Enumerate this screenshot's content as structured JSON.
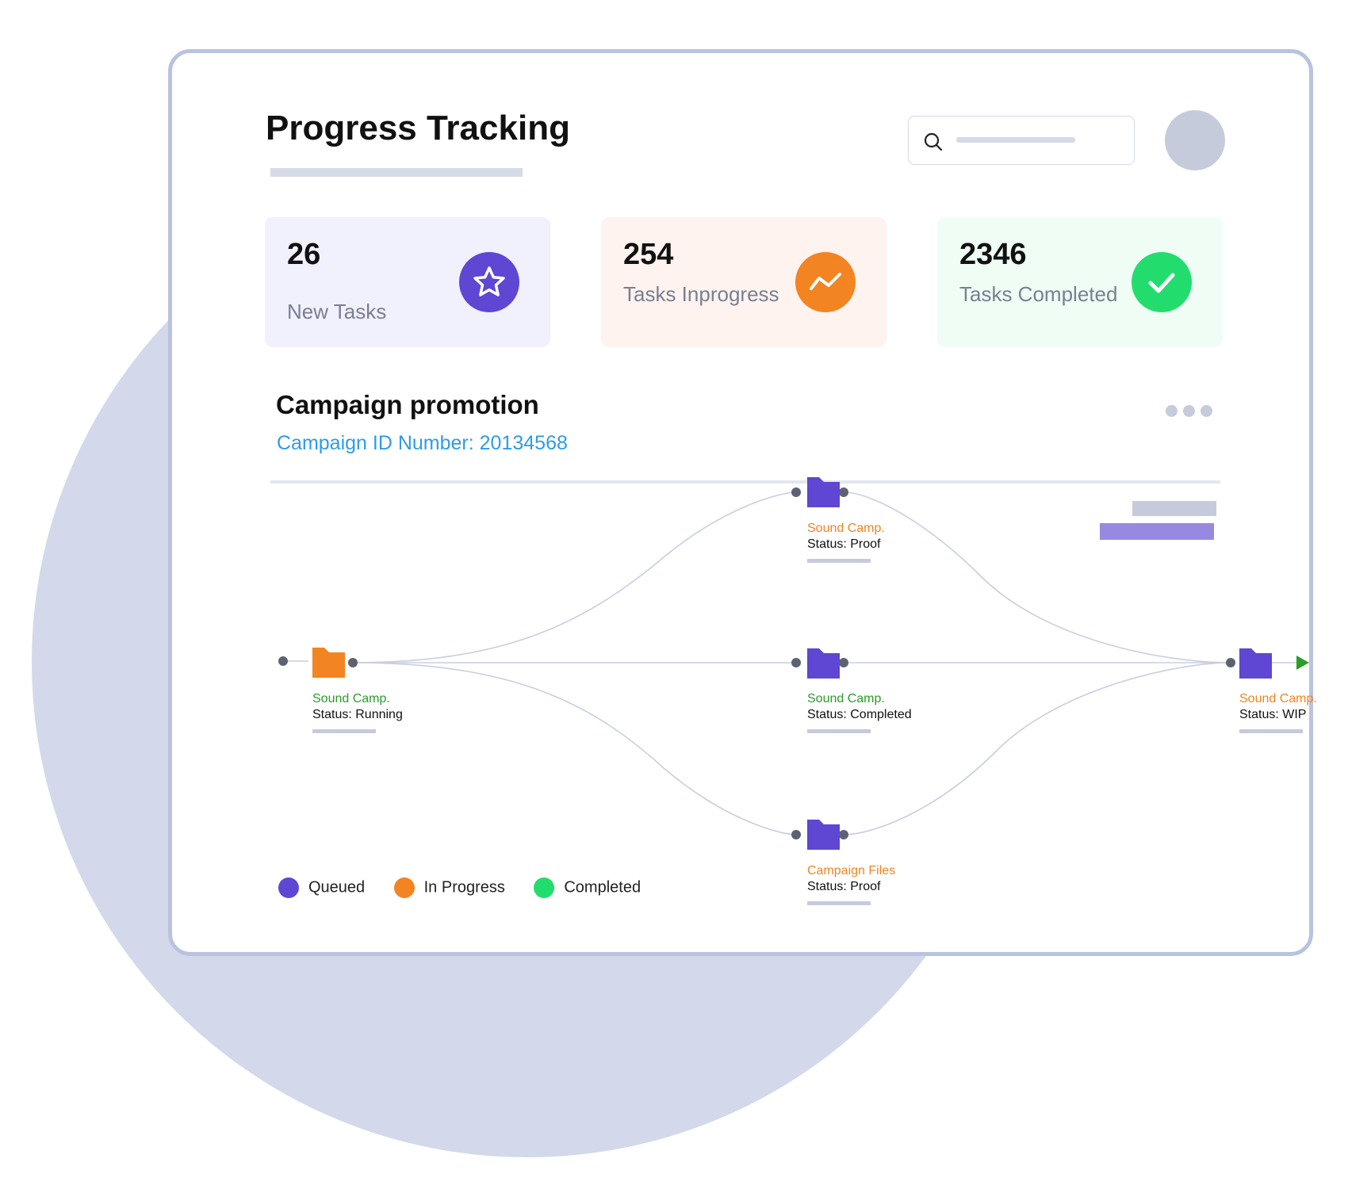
{
  "header": {
    "title": "Progress Tracking"
  },
  "stats": [
    {
      "value": "26",
      "label": "New Tasks",
      "icon": "star-icon",
      "bg": "#f1f0fd",
      "icon_color": "#5f46d3"
    },
    {
      "value": "254",
      "label": "Tasks Inprogress",
      "icon": "trend-icon",
      "bg": "#fef3ef",
      "icon_color": "#f28422"
    },
    {
      "value": "2346",
      "label": "Tasks Completed",
      "icon": "check-icon",
      "bg": "#effdf5",
      "icon_color": "#22dd6e"
    }
  ],
  "campaign": {
    "title": "Campaign promotion",
    "id_text": "Campaign ID Number: 20134568"
  },
  "flow": {
    "nodes": [
      {
        "name": "Sound Camp.",
        "status": "Status: Running",
        "folder_color": "#f28422",
        "name_color": "#2a9d2a"
      },
      {
        "name": "Sound Camp.",
        "status": "Status: Proof",
        "folder_color": "#5f46d3",
        "name_color": "#f28422"
      },
      {
        "name": "Sound Camp.",
        "status": "Status: Completed",
        "folder_color": "#5f46d3",
        "name_color": "#2a9d2a"
      },
      {
        "name": "Campaign Files",
        "status": "Status: Proof",
        "folder_color": "#5f46d3",
        "name_color": "#f28422"
      },
      {
        "name": "Sound Camp.",
        "status": "Status: WIP",
        "folder_color": "#5f46d3",
        "name_color": "#f28422"
      }
    ]
  },
  "legend": [
    {
      "label": "Queued",
      "color": "#5f46d3"
    },
    {
      "label": "In Progress",
      "color": "#f28422"
    },
    {
      "label": "Completed",
      "color": "#22dd6e"
    }
  ]
}
